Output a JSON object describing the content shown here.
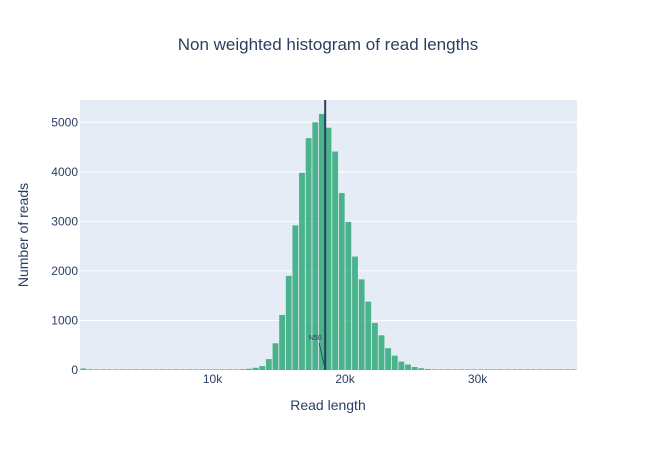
{
  "chart_data": {
    "type": "bar",
    "title": "Non weighted histogram of read lengths",
    "xlabel": "Read length",
    "ylabel": "Number of reads",
    "xlim": [
      0,
      37500
    ],
    "ylim": [
      0,
      5450
    ],
    "x_ticks": [
      10000,
      20000,
      30000
    ],
    "x_tick_labels": [
      "10k",
      "20k",
      "30k"
    ],
    "y_ticks": [
      0,
      1000,
      2000,
      3000,
      4000,
      5000
    ],
    "y_tick_labels": [
      "0",
      "1000",
      "2000",
      "3000",
      "4000",
      "5000"
    ],
    "grid": true,
    "legend": "none",
    "bin_width": 500,
    "bin_starts": [
      0,
      500,
      1000,
      1500,
      2000,
      2500,
      3000,
      3500,
      4000,
      4500,
      5000,
      5500,
      6000,
      6500,
      7000,
      7500,
      8000,
      8500,
      9000,
      9500,
      10000,
      10500,
      11000,
      11500,
      12000,
      12500,
      13000,
      13500,
      14000,
      14500,
      15000,
      15500,
      16000,
      16500,
      17000,
      17500,
      18000,
      18500,
      19000,
      19500,
      20000,
      20500,
      21000,
      21500,
      22000,
      22500,
      23000,
      23500,
      24000,
      24500,
      25000,
      25500,
      26000,
      26500,
      27000,
      27500,
      28000,
      28500,
      29000,
      29500,
      30000,
      30500,
      31000,
      31500,
      32000,
      32500,
      33000,
      33500,
      34000,
      34500,
      35000,
      35500,
      36000,
      36500,
      37000
    ],
    "values": [
      30,
      15,
      10,
      8,
      5,
      5,
      4,
      4,
      3,
      3,
      3,
      3,
      3,
      3,
      3,
      3,
      3,
      3,
      4,
      4,
      5,
      6,
      8,
      10,
      15,
      25,
      45,
      80,
      220,
      540,
      1110,
      1900,
      2920,
      3980,
      4680,
      5000,
      5170,
      4890,
      4410,
      3570,
      2990,
      2290,
      1830,
      1380,
      950,
      700,
      440,
      290,
      170,
      110,
      60,
      35,
      20,
      12,
      8,
      6,
      4,
      3,
      3,
      2,
      2,
      2,
      1,
      1,
      1,
      1,
      1,
      1,
      1,
      1,
      1,
      1,
      1,
      1,
      1
    ],
    "bar_color": "#3aad7f",
    "annotation": {
      "label": "N50",
      "x": 18500,
      "line_color": "#2a3f5f"
    },
    "colors": {
      "plot_background": "#e5ecf6",
      "grid": "#ffffff",
      "text": "#2a3f5f"
    }
  }
}
